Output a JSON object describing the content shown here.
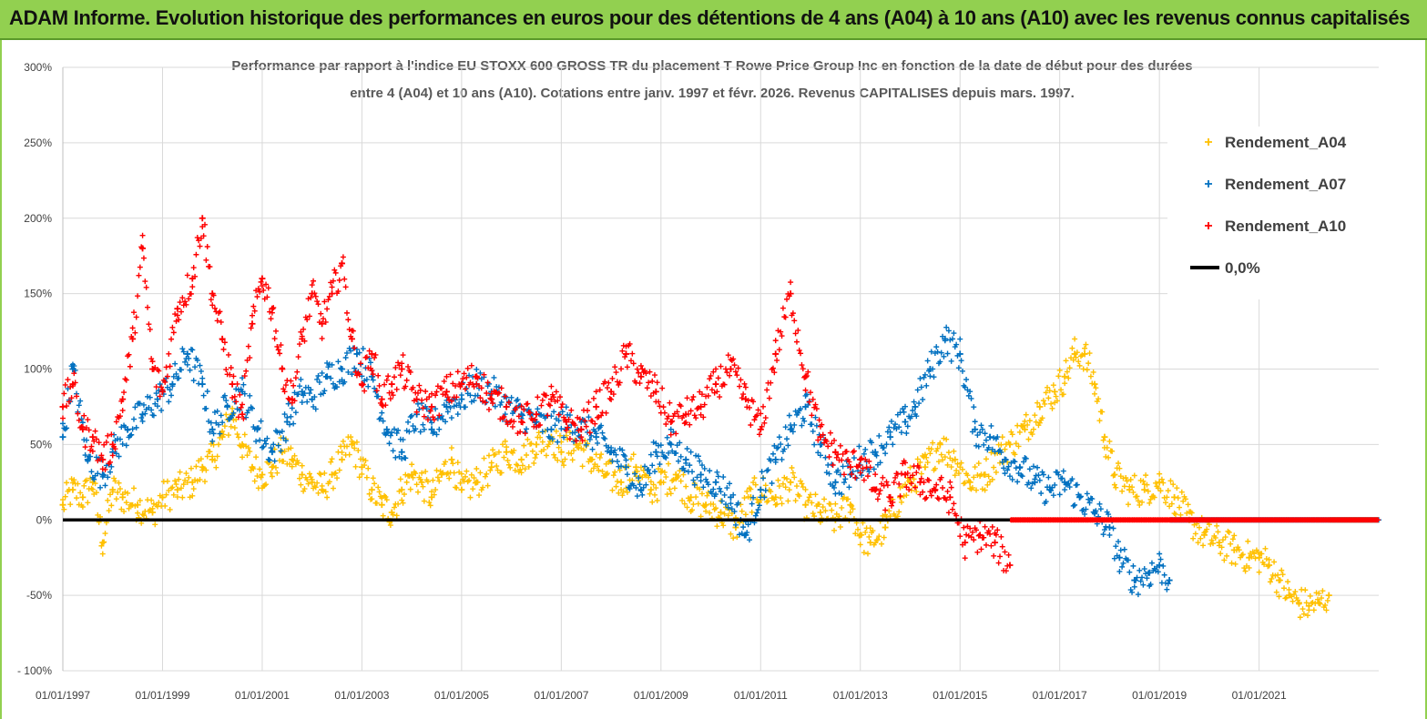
{
  "header": {
    "title": "ADAM Informe. Evolution historique des performances en euros pour des détentions de 4 ans (A04) à 10 ans (A10) avec les revenus connus capitalisés"
  },
  "colors": {
    "banner": "#92d050",
    "A04": "#ffc000",
    "A07": "#0070c0",
    "A10": "#ff0000",
    "zero": "#000000"
  },
  "chart_data": {
    "type": "scatter",
    "title_line1": "Performance par rapport à l'indice EU STOXX 600 GROSS TR  du placement T Rowe Price Group Inc en fonction de la date de début pour des durées",
    "title_line2": "entre 4 (A04) et 10 ans (A10). Cotations entre janv. 1997 et févr. 2026. Revenus CAPITALISES depuis mars. 1997.",
    "xlabel": "",
    "ylabel": "",
    "ylim": [
      -100,
      300
    ],
    "xlim": [
      1997.0,
      2023.4
    ],
    "yticks": [
      {
        "value": 300,
        "label": "300%"
      },
      {
        "value": 250,
        "label": "250%"
      },
      {
        "value": 200,
        "label": "200%"
      },
      {
        "value": 150,
        "label": "150%"
      },
      {
        "value": 100,
        "label": "100%"
      },
      {
        "value": 50,
        "label": "50%"
      },
      {
        "value": 0,
        "label": "0%"
      },
      {
        "value": -50,
        "label": "-50%"
      },
      {
        "value": -100,
        "label": "- 100%"
      }
    ],
    "xticks": [
      {
        "value": 1997,
        "label": "01/01/1997"
      },
      {
        "value": 1999,
        "label": "01/01/1999"
      },
      {
        "value": 2001,
        "label": "01/01/2001"
      },
      {
        "value": 2003,
        "label": "01/01/2003"
      },
      {
        "value": 2005,
        "label": "01/01/2005"
      },
      {
        "value": 2007,
        "label": "01/01/2007"
      },
      {
        "value": 2009,
        "label": "01/01/2009"
      },
      {
        "value": 2011,
        "label": "01/01/2011"
      },
      {
        "value": 2013,
        "label": "01/01/2013"
      },
      {
        "value": 2015,
        "label": "01/01/2015"
      },
      {
        "value": 2017,
        "label": "01/01/2017"
      },
      {
        "value": 2019,
        "label": "01/01/2019"
      },
      {
        "value": 2021,
        "label": "01/01/2021"
      }
    ],
    "legend_position": "top-right",
    "series": [
      {
        "name": "Rendement_A04",
        "color": "#ffc000",
        "x": [
          1997.0,
          1997.2,
          1997.4,
          1997.6,
          1997.8,
          1998.0,
          1998.2,
          1998.5,
          1998.8,
          1999.0,
          1999.3,
          1999.6,
          1999.8,
          2000.0,
          2000.2,
          2000.4,
          2000.6,
          2000.8,
          2001.0,
          2001.2,
          2001.4,
          2001.6,
          2001.8,
          2002.0,
          2002.2,
          2002.4,
          2002.6,
          2002.8,
          2003.0,
          2003.2,
          2003.4,
          2003.6,
          2003.8,
          2004.0,
          2004.2,
          2004.4,
          2004.6,
          2004.8,
          2005.0,
          2005.3,
          2005.6,
          2005.9,
          2006.2,
          2006.5,
          2006.8,
          2007.0,
          2007.3,
          2007.6,
          2007.9,
          2008.2,
          2008.5,
          2008.8,
          2009.0,
          2009.3,
          2009.6,
          2009.9,
          2010.2,
          2010.5,
          2010.8,
          2011.0,
          2011.3,
          2011.6,
          2011.9,
          2012.2,
          2012.5,
          2012.8,
          2013.0,
          2013.2,
          2013.5,
          2013.8,
          2014.0,
          2014.3,
          2014.6,
          2014.9,
          2015.2,
          2015.5,
          2015.8,
          2016.0,
          2016.3,
          2016.6,
          2016.9,
          2017.1,
          2017.3,
          2017.5,
          2017.7,
          2017.9,
          2018.1,
          2018.4,
          2018.7,
          2019.0,
          2019.3,
          2019.6,
          2019.9,
          2020.2,
          2020.5,
          2020.8,
          2021.0,
          2021.2,
          2021.4,
          2021.6,
          2021.8,
          2022.0,
          2022.2,
          2022.4
        ],
        "values": [
          10,
          20,
          15,
          25,
          -15,
          20,
          15,
          10,
          5,
          15,
          20,
          25,
          35,
          40,
          55,
          70,
          50,
          35,
          30,
          35,
          45,
          40,
          30,
          25,
          20,
          30,
          40,
          50,
          35,
          20,
          10,
          5,
          20,
          30,
          25,
          15,
          30,
          40,
          20,
          25,
          35,
          45,
          40,
          50,
          55,
          45,
          50,
          40,
          30,
          25,
          35,
          20,
          25,
          30,
          15,
          10,
          5,
          -5,
          15,
          20,
          15,
          25,
          10,
          5,
          0,
          10,
          -10,
          -15,
          -5,
          15,
          25,
          35,
          50,
          40,
          25,
          30,
          45,
          50,
          60,
          75,
          85,
          95,
          110,
          110,
          90,
          55,
          30,
          20,
          20,
          25,
          15,
          0,
          -10,
          -15,
          -20,
          -25,
          -25,
          -30,
          -40,
          -50,
          -55,
          -57,
          -55,
          -50
        ]
      },
      {
        "name": "Rendement_A07",
        "color": "#0070c0",
        "x": [
          1997.0,
          1997.2,
          1997.5,
          1997.8,
          1998.0,
          1998.3,
          1998.6,
          1998.9,
          1999.2,
          1999.5,
          1999.8,
          2000.0,
          2000.3,
          2000.6,
          2000.9,
          2001.2,
          2001.5,
          2001.8,
          2002.0,
          2002.3,
          2002.6,
          2002.9,
          2003.2,
          2003.5,
          2003.8,
          2004.1,
          2004.4,
          2004.7,
          2005.0,
          2005.3,
          2005.6,
          2005.9,
          2006.2,
          2006.5,
          2006.8,
          2007.1,
          2007.4,
          2007.7,
          2008.0,
          2008.3,
          2008.6,
          2008.9,
          2009.2,
          2009.5,
          2009.8,
          2010.1,
          2010.4,
          2010.7,
          2011.0,
          2011.3,
          2011.6,
          2011.9,
          2012.2,
          2012.5,
          2012.8,
          2013.0,
          2013.3,
          2013.6,
          2013.9,
          2014.1,
          2014.4,
          2014.7,
          2015.0,
          2015.3,
          2015.6,
          2015.9,
          2016.2,
          2016.5,
          2016.8,
          2017.1,
          2017.4,
          2017.7,
          2018.0,
          2018.2,
          2018.5,
          2018.8,
          2019.0,
          2019.2
        ],
        "values": [
          55,
          100,
          40,
          30,
          45,
          60,
          70,
          80,
          90,
          110,
          90,
          60,
          75,
          85,
          60,
          45,
          65,
          85,
          80,
          95,
          100,
          110,
          95,
          60,
          45,
          70,
          60,
          75,
          80,
          90,
          85,
          75,
          70,
          65,
          60,
          65,
          60,
          55,
          45,
          35,
          20,
          45,
          50,
          40,
          30,
          25,
          15,
          -10,
          20,
          40,
          60,
          75,
          50,
          25,
          30,
          40,
          45,
          55,
          65,
          75,
          100,
          120,
          110,
          60,
          55,
          40,
          35,
          25,
          20,
          25,
          15,
          5,
          -5,
          -25,
          -40,
          -35,
          -30,
          -40
        ]
      },
      {
        "name": "Rendement_A10",
        "color": "#ff0000",
        "x": [
          1997.0,
          1997.2,
          1997.4,
          1997.6,
          1997.8,
          1998.0,
          1998.2,
          1998.4,
          1998.6,
          1998.8,
          1999.0,
          1999.3,
          1999.6,
          1999.8,
          2000.0,
          2000.2,
          2000.4,
          2000.6,
          2000.8,
          2001.0,
          2001.2,
          2001.4,
          2001.6,
          2001.8,
          2002.0,
          2002.2,
          2002.4,
          2002.6,
          2002.8,
          2003.0,
          2003.2,
          2003.4,
          2003.6,
          2003.8,
          2004.1,
          2004.4,
          2004.7,
          2005.0,
          2005.3,
          2005.6,
          2005.9,
          2006.2,
          2006.5,
          2006.8,
          2007.1,
          2007.4,
          2007.7,
          2008.0,
          2008.3,
          2008.6,
          2008.9,
          2009.2,
          2009.5,
          2009.8,
          2010.1,
          2010.4,
          2010.7,
          2011.0,
          2011.3,
          2011.6,
          2011.9,
          2012.2,
          2012.5,
          2012.8,
          2013.0,
          2013.3,
          2013.6,
          2013.9,
          2014.2,
          2014.5,
          2014.8,
          2015.1,
          2015.4,
          2015.7,
          2016.0
        ],
        "values": [
          75,
          90,
          60,
          55,
          40,
          50,
          80,
          120,
          180,
          100,
          85,
          140,
          160,
          200,
          150,
          120,
          90,
          70,
          130,
          160,
          140,
          100,
          80,
          120,
          150,
          130,
          150,
          170,
          120,
          90,
          110,
          80,
          90,
          100,
          80,
          75,
          85,
          90,
          95,
          80,
          75,
          65,
          70,
          80,
          65,
          60,
          75,
          85,
          110,
          95,
          85,
          65,
          70,
          75,
          90,
          100,
          80,
          60,
          110,
          150,
          95,
          55,
          45,
          35,
          40,
          20,
          15,
          30,
          25,
          20,
          15,
          -15,
          -10,
          -15,
          -30
        ]
      },
      {
        "name": "0,0%",
        "color": "#000000",
        "x": [
          1997.0,
          2016.0
        ],
        "values": [
          0,
          0
        ]
      }
    ]
  }
}
